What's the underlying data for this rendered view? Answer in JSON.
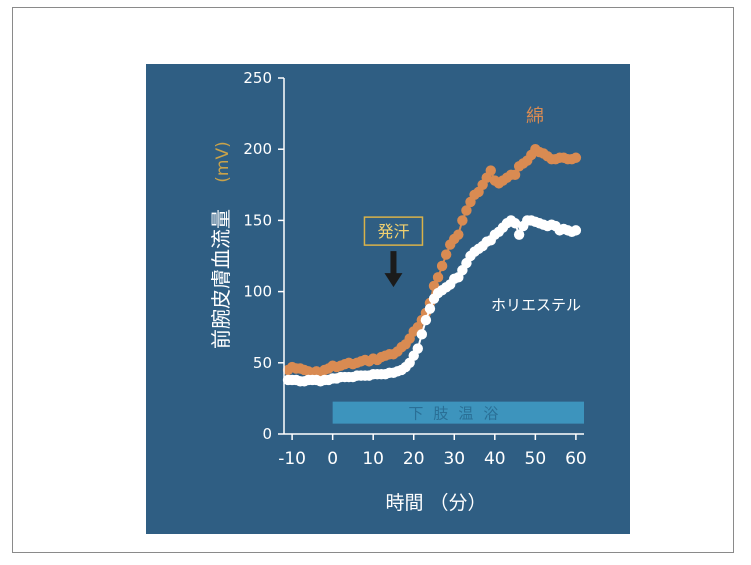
{
  "chart_data": {
    "type": "scatter",
    "xlabel": "時間 （分）",
    "ylabel": "前腕皮膚血流量",
    "ylabel_unit": "(mV)",
    "xlim": [
      -12,
      62
    ],
    "ylim": [
      0,
      250
    ],
    "x_ticks": [
      "-10",
      "0",
      "10",
      "20",
      "30",
      "40",
      "50",
      "60"
    ],
    "y_ticks": [
      "0",
      "50",
      "100",
      "150",
      "200",
      "250"
    ],
    "grid": false,
    "colors": {
      "background": "#2f5e83",
      "axis": "#ffffff",
      "cotton": "#d98b52",
      "polyester": "#ffffff",
      "bar": "#3f9ec8",
      "callout_border": "#d9b24a",
      "callout_text": "#f0d070",
      "unit": "#c9a24a"
    },
    "annotation": {
      "label": "発汗",
      "x": 15,
      "y": 120
    },
    "band": {
      "label": "下肢温浴",
      "x_start": 0,
      "x_end": 62,
      "y_center": 15
    },
    "series": [
      {
        "name": "綿",
        "style": "connected-markers",
        "x": [
          -11,
          -10,
          -9,
          -8,
          -7,
          -6,
          -5,
          -4,
          -3,
          -2,
          -1,
          0,
          1,
          2,
          3,
          4,
          5,
          6,
          7,
          8,
          9,
          10,
          11,
          12,
          13,
          14,
          15,
          16,
          17,
          18,
          19,
          20,
          21,
          22,
          23,
          24,
          25,
          26,
          27,
          28,
          29,
          30,
          31,
          32,
          33,
          34,
          35,
          36,
          37,
          38,
          39,
          40,
          41,
          42,
          43,
          44,
          45,
          46,
          47,
          48,
          49,
          50,
          51,
          52,
          53,
          54,
          55,
          56,
          57,
          58,
          59,
          60
        ],
        "y": [
          45,
          47,
          46,
          46,
          45,
          44,
          43,
          44,
          43,
          45,
          46,
          48,
          47,
          48,
          49,
          50,
          49,
          50,
          51,
          52,
          51,
          53,
          52,
          54,
          55,
          56,
          56,
          58,
          61,
          63,
          67,
          72,
          75,
          80,
          85,
          92,
          104,
          110,
          118,
          126,
          133,
          137,
          140,
          150,
          157,
          163,
          168,
          170,
          175,
          180,
          185,
          178,
          176,
          178,
          180,
          182,
          182,
          188,
          190,
          192,
          196,
          200,
          198,
          197,
          195,
          193,
          193,
          194,
          194,
          193,
          193,
          194
        ]
      },
      {
        "name": "ホリエステル",
        "style": "connected-markers",
        "x": [
          -11,
          -10,
          -9,
          -8,
          -7,
          -6,
          -5,
          -4,
          -3,
          -2,
          -1,
          0,
          1,
          2,
          3,
          4,
          5,
          6,
          7,
          8,
          9,
          10,
          11,
          12,
          13,
          14,
          15,
          16,
          17,
          18,
          19,
          20,
          21,
          22,
          23,
          24,
          25,
          26,
          27,
          28,
          29,
          30,
          31,
          32,
          33,
          34,
          35,
          36,
          37,
          38,
          39,
          40,
          41,
          42,
          43,
          44,
          45,
          46,
          47,
          48,
          49,
          50,
          51,
          52,
          53,
          54,
          55,
          56,
          57,
          58,
          59,
          60
        ],
        "y": [
          38,
          38,
          38,
          37,
          37,
          38,
          38,
          38,
          37,
          38,
          38,
          39,
          39,
          40,
          40,
          40,
          40,
          41,
          41,
          41,
          41,
          42,
          42,
          42,
          42,
          43,
          43,
          44,
          45,
          47,
          50,
          55,
          60,
          70,
          80,
          88,
          95,
          99,
          101,
          103,
          105,
          109,
          110,
          115,
          120,
          125,
          128,
          130,
          132,
          135,
          136,
          140,
          142,
          145,
          148,
          150,
          148,
          140,
          146,
          150,
          150,
          149,
          148,
          147,
          146,
          147,
          146,
          143,
          144,
          143,
          142,
          143
        ]
      }
    ]
  }
}
